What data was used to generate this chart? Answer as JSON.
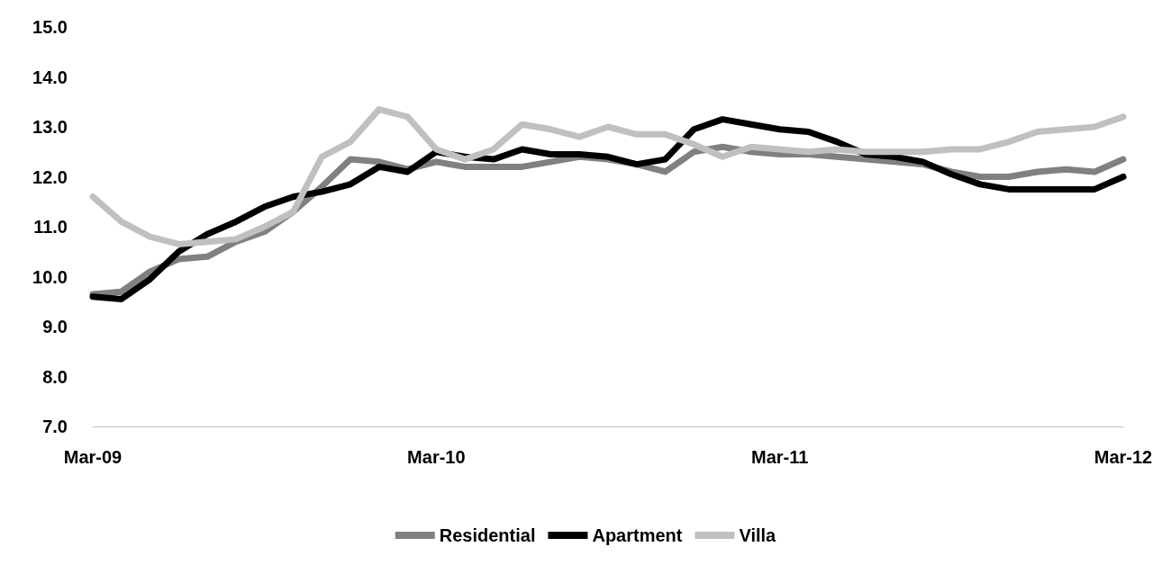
{
  "chart_data": {
    "type": "line",
    "categories": [
      "Mar-09",
      null,
      null,
      null,
      null,
      null,
      null,
      null,
      null,
      null,
      null,
      null,
      "Mar-10",
      null,
      null,
      null,
      null,
      null,
      null,
      null,
      null,
      null,
      null,
      null,
      "Mar-11",
      null,
      null,
      null,
      null,
      null,
      null,
      null,
      null,
      null,
      null,
      null,
      "Mar-12"
    ],
    "series": [
      {
        "name": "Residential",
        "color": "#808080",
        "values": [
          9.65,
          9.7,
          10.1,
          10.35,
          10.4,
          10.7,
          10.9,
          11.3,
          11.8,
          12.35,
          12.3,
          12.15,
          12.3,
          12.2,
          12.2,
          12.2,
          12.3,
          12.4,
          12.35,
          12.25,
          12.1,
          12.5,
          12.6,
          12.5,
          12.45,
          12.45,
          12.4,
          12.35,
          12.3,
          12.25,
          12.1,
          12.0,
          12.0,
          12.1,
          12.15,
          12.1,
          12.35
        ]
      },
      {
        "name": "Apartment",
        "color": "#000000",
        "values": [
          9.6,
          9.55,
          9.95,
          10.5,
          10.85,
          11.1,
          11.4,
          11.6,
          11.7,
          11.85,
          12.2,
          12.1,
          12.5,
          12.4,
          12.35,
          12.55,
          12.45,
          12.45,
          12.4,
          12.25,
          12.35,
          12.95,
          13.15,
          13.05,
          12.95,
          12.9,
          12.7,
          12.45,
          12.4,
          12.3,
          12.05,
          11.85,
          11.75,
          11.75,
          11.75,
          11.75,
          12.0
        ]
      },
      {
        "name": "Villa",
        "color": "#c0c0c0",
        "values": [
          11.6,
          11.1,
          10.8,
          10.65,
          10.7,
          10.75,
          11.0,
          11.3,
          12.4,
          12.7,
          13.35,
          13.2,
          12.55,
          12.35,
          12.55,
          13.05,
          12.95,
          12.8,
          13.0,
          12.85,
          12.85,
          12.65,
          12.4,
          12.6,
          12.55,
          12.5,
          12.55,
          12.5,
          12.5,
          12.5,
          12.55,
          12.55,
          12.7,
          12.9,
          12.95,
          13.0,
          13.2
        ]
      }
    ],
    "ylim": [
      7,
      15
    ],
    "yticks": [
      {
        "value": 7,
        "label": "7.0"
      },
      {
        "value": 8,
        "label": "8.0"
      },
      {
        "value": 9,
        "label": "9.0"
      },
      {
        "value": 10,
        "label": "10.0"
      },
      {
        "value": 11,
        "label": "11.0"
      },
      {
        "value": 12,
        "label": "12.0"
      },
      {
        "value": 13,
        "label": "13.0"
      },
      {
        "value": 14,
        "label": "14.0"
      },
      {
        "value": 15,
        "label": "15.0"
      }
    ],
    "grid": false,
    "legend": "bottom",
    "marker": "none",
    "line_style": "solid"
  }
}
